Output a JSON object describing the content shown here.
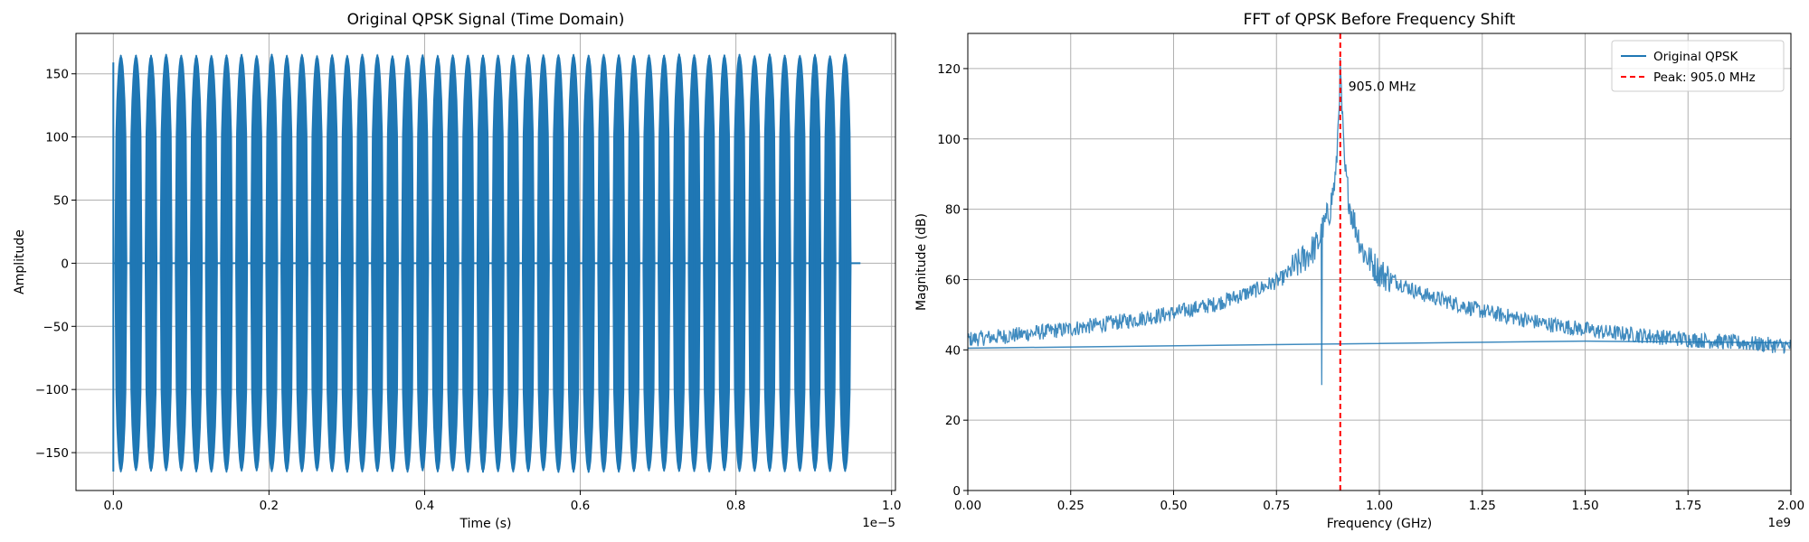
{
  "chart_data": [
    {
      "type": "line",
      "title": "Original QPSK Signal (Time Domain)",
      "xlabel": "Time (s)",
      "ylabel": "Amplitude",
      "x_offset_text": "1e−5",
      "xlim": [
        -4.8e-07,
        1.005e-05
      ],
      "ylim": [
        -180,
        182
      ],
      "xticks": [
        0,
        2e-06,
        4e-06,
        6e-06,
        8e-06,
        1e-05
      ],
      "xtick_labels": [
        "0.0",
        "0.2",
        "0.4",
        "0.6",
        "0.8",
        "1.0"
      ],
      "yticks": [
        -150,
        -100,
        -50,
        0,
        50,
        100,
        150
      ],
      "ytick_labels": [
        "−150",
        "−100",
        "−50",
        "0",
        "50",
        "100",
        "150"
      ],
      "grid": true,
      "series": [
        {
          "color": "#1f77b4",
          "description_values": {
            "signal_start": 0,
            "signal_end": 9.5e-06,
            "tail_end": 9.6e-06,
            "burst_count": 49,
            "burst_peak": 165,
            "burst_trough": -165,
            "first_sample_max": 159
          }
        }
      ]
    },
    {
      "type": "line",
      "title": "FFT of QPSK Before Frequency Shift",
      "xlabel": "Frequency (GHz)",
      "ylabel": "Magnitude (dB)",
      "x_offset_text": "1e9",
      "xlim": [
        0,
        2000000000
      ],
      "ylim": [
        0,
        130
      ],
      "xticks": [
        0,
        250000000,
        500000000,
        750000000,
        1000000000,
        1250000000,
        1500000000,
        1750000000,
        2000000000
      ],
      "xtick_labels": [
        "0.00",
        "0.25",
        "0.50",
        "0.75",
        "1.00",
        "1.25",
        "1.50",
        "1.75",
        "2.00"
      ],
      "yticks": [
        0,
        20,
        40,
        60,
        80,
        100,
        120
      ],
      "ytick_labels": [
        "0",
        "20",
        "40",
        "60",
        "80",
        "100",
        "120"
      ],
      "grid": true,
      "legend_placement": "top-right",
      "legend": [
        {
          "label": "Original QPSK",
          "color": "#1f77b4",
          "style": "solid"
        },
        {
          "label": "Peak: 905.0 MHz",
          "color": "#ff0000",
          "style": "dashed"
        }
      ],
      "peak": {
        "x": 905000000,
        "y": 120,
        "label": "905.0 MHz",
        "color": "#ff0000"
      },
      "series": [
        {
          "name": "Original QPSK",
          "color": "#1f77b4",
          "envelope_points": [
            [
              0,
              43
            ],
            [
              100000000,
              44
            ],
            [
              250000000,
              46
            ],
            [
              400000000,
              48.5
            ],
            [
              500000000,
              50.5
            ],
            [
              600000000,
              53
            ],
            [
              700000000,
              57
            ],
            [
              760000000,
              60
            ],
            [
              800000000,
              64
            ],
            [
              850000000,
              70
            ],
            [
              880000000,
              80
            ],
            [
              895000000,
              90
            ],
            [
              905000000,
              120
            ],
            [
              915000000,
              92
            ],
            [
              930000000,
              80
            ],
            [
              960000000,
              68
            ],
            [
              1000000000,
              62
            ],
            [
              1100000000,
              56
            ],
            [
              1250000000,
              51
            ],
            [
              1400000000,
              47.5
            ],
            [
              1550000000,
              45
            ],
            [
              1750000000,
              43
            ],
            [
              2000000000,
              41
            ]
          ],
          "dip": {
            "x": 860000000,
            "y": 30
          },
          "return_line": {
            "from": [
              0,
              40.5
            ],
            "mid": [
              1500000000,
              42.5
            ],
            "to": [
              2000000000,
              42
            ]
          }
        }
      ]
    }
  ]
}
